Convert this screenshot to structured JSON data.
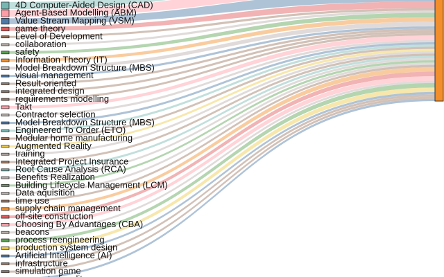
{
  "chart_data": {
    "type": "sankey",
    "title": "",
    "target": {
      "name": "",
      "color": "#f28e2b"
    },
    "nodes": [
      {
        "label": "4D Computer-Aided Design (CAD)",
        "color": "#76b7b2"
      },
      {
        "label": "Agent-Based Modelling (ABM)",
        "color": "#ff9da7"
      },
      {
        "label": "Value Stream Mapping (VSM)",
        "color": "#4e79a7"
      },
      {
        "label": "game theory",
        "color": "#e15759"
      },
      {
        "label": "Level of Development",
        "color": "#9c755f"
      },
      {
        "label": "collaboration",
        "color": "#bab0ac"
      },
      {
        "label": "safety",
        "color": "#59a14f"
      },
      {
        "label": "Information Theory (IT)",
        "color": "#f28e2b"
      },
      {
        "label": "Model Breakdown Structure (MBS)",
        "color": "#bab0ac"
      },
      {
        "label": "visual management",
        "color": "#4e79a7"
      },
      {
        "label": "Result-oriented",
        "color": "#9c755f"
      },
      {
        "label": "integrated design",
        "color": "#9c755f"
      },
      {
        "label": "requirements modelling",
        "color": "#9c755f"
      },
      {
        "label": "Takt",
        "color": "#ff9da7"
      },
      {
        "label": "Contractor selection",
        "color": "#bab0ac"
      },
      {
        "label": "Model Breakdown Structure (MBS)",
        "color": "#4e79a7"
      },
      {
        "label": "Engineered To Order (ETO)",
        "color": "#76b7b2"
      },
      {
        "label": "Modular home manufacturing",
        "color": "#9c755f"
      },
      {
        "label": "Augmented Reality",
        "color": "#edc948"
      },
      {
        "label": "training",
        "color": "#bab0ac"
      },
      {
        "label": "Integrated Project Insurance",
        "color": "#9c755f"
      },
      {
        "label": "Root Cause Analysis (RCA)",
        "color": "#76b7b2"
      },
      {
        "label": "Benefits Realization",
        "color": "#bab0ac"
      },
      {
        "label": "Building Lifecycle Management (LCM)",
        "color": "#59a14f"
      },
      {
        "label": "Data aquisition",
        "color": "#bab0ac"
      },
      {
        "label": "time use",
        "color": "#9c755f"
      },
      {
        "label": "supply chain management",
        "color": "#f28e2b"
      },
      {
        "label": "off-site construction",
        "color": "#e15759"
      },
      {
        "label": "Choosing By Advantages (CBA)",
        "color": "#ff9da7"
      },
      {
        "label": "beacons",
        "color": "#bab0ac"
      },
      {
        "label": "process reengineering",
        "color": "#59a14f"
      },
      {
        "label": "production system design",
        "color": "#edc948"
      },
      {
        "label": "Artificial Intelligence (AI)",
        "color": "#4e79a7"
      },
      {
        "label": "infrastructure",
        "color": "#9c755f"
      },
      {
        "label": "simulation game",
        "color": "#9c755f"
      },
      {
        "label": "augmented reality",
        "color": "#4e79a7"
      }
    ],
    "values": [
      7,
      7,
      5,
      3,
      1,
      1,
      2,
      2,
      2,
      1,
      1,
      1,
      1,
      2,
      1,
      1,
      1,
      1,
      1,
      1,
      1,
      1,
      1,
      1,
      1,
      1,
      2,
      2,
      2,
      1,
      2,
      2,
      1,
      1,
      1,
      1
    ]
  }
}
